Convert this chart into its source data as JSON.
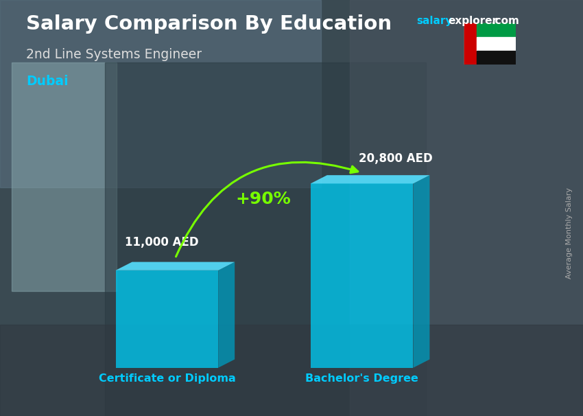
{
  "title": "Salary Comparison By Education",
  "subtitle": "2nd Line Systems Engineer",
  "city": "Dubai",
  "ylabel": "Average Monthly Salary",
  "categories": [
    "Certificate or Diploma",
    "Bachelor's Degree"
  ],
  "values": [
    11000,
    20800
  ],
  "value_labels": [
    "11,000 AED",
    "20,800 AED"
  ],
  "bar_color_face": "#00c8f0",
  "bar_color_side": "#0099bb",
  "bar_color_top": "#55e0ff",
  "bar_alpha": 0.78,
  "pct_label": "+90%",
  "pct_color": "#77ff00",
  "arrow_color": "#77ff00",
  "title_color": "#ffffff",
  "subtitle_color": "#dddddd",
  "city_color": "#00ccff",
  "label_color": "#ffffff",
  "cat_color": "#00ccff",
  "bg_color": "#4a5a62",
  "site_salary_color": "#00ccff",
  "site_rest_color": "#ffffff",
  "figsize": [
    8.5,
    6.06
  ],
  "dpi": 100
}
